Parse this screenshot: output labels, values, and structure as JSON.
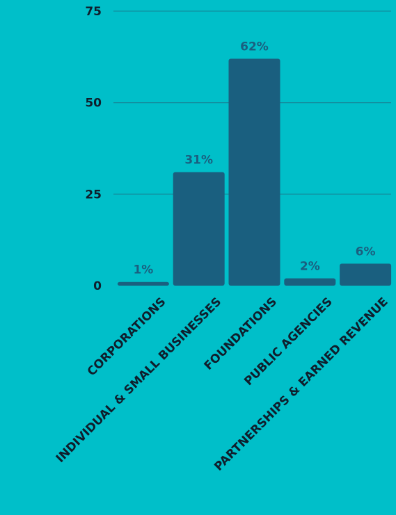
{
  "chart_data": {
    "type": "bar",
    "categories": [
      "CORPORATIONS",
      "INDIVIDUAL & SMALL BUSINESSES",
      "FOUNDATIONS",
      "PUBLIC AGENCIES",
      "PARTNERSHIPS & EARNED REVENUE"
    ],
    "values": [
      1,
      31,
      62,
      2,
      6
    ],
    "data_labels": [
      "1%",
      "31%",
      "62%",
      "2%",
      "6%"
    ],
    "y_ticks": [
      0,
      25,
      50,
      75
    ],
    "ylim": [
      0,
      75
    ],
    "grid": true,
    "title": "",
    "xlabel": "",
    "ylabel": ""
  },
  "colors": {
    "background": "#00BFC9",
    "bar": "#1A5F7F",
    "gridline": "#128FA0",
    "tick_text": "#0F1E2C",
    "data_label_text": "#1A5F7F"
  }
}
